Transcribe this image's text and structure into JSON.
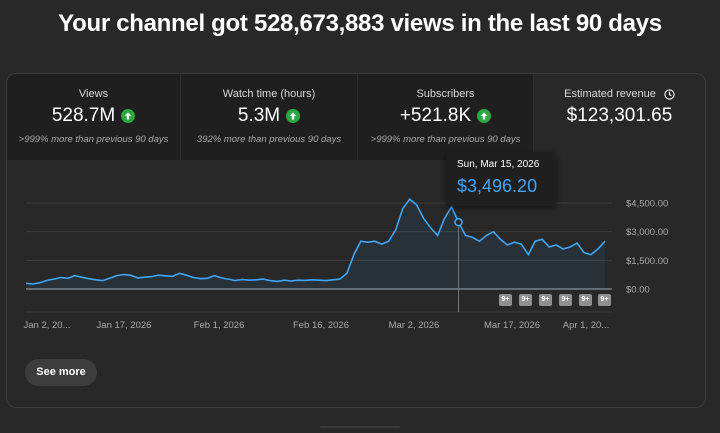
{
  "headline": "Your channel got 528,673,883 views in the last 90 days",
  "metrics": [
    {
      "label": "Views",
      "value": "528.7M",
      "sub": ">999% more than previous 90 days",
      "trend": "up"
    },
    {
      "label": "Watch time (hours)",
      "value": "5.3M",
      "sub": "392% more than previous 90 days",
      "trend": "up"
    },
    {
      "label": "Subscribers",
      "value": "+521.8K",
      "sub": ">999% more than previous 90 days",
      "trend": "up"
    },
    {
      "label": "Estimated revenue",
      "value": "$123,301.65",
      "icon": "clock-icon"
    }
  ],
  "tooltip": {
    "date": "Sun, Mar 15, 2026",
    "value": "$3,496.20"
  },
  "see_more": "See more",
  "badge_label": "9+",
  "colors": {
    "line": "#3ea6ff",
    "positive": "#2ba640",
    "background": "#282828"
  },
  "chart_data": {
    "type": "area",
    "x_tick_labels": [
      "Jan 2, 20...",
      "Jan 17, 2026",
      "Feb 1, 2026",
      "Feb 16, 2026",
      "Mar 2, 2026",
      "Mar 17, 2026",
      "Apr 1, 20..."
    ],
    "y_tick_labels": [
      "$4,500.00",
      "$3,000.00",
      "$1,500.00",
      "$0.00"
    ],
    "ylim": [
      0,
      4500
    ],
    "grid": true,
    "series": [
      {
        "values": [
          300,
          260,
          330,
          450,
          520,
          600,
          560,
          700,
          620,
          540,
          480,
          440,
          560,
          700,
          760,
          720,
          580,
          620,
          650,
          720,
          690,
          660,
          820,
          720,
          600,
          540,
          560,
          700,
          580,
          520,
          440,
          500,
          460,
          480,
          520,
          440,
          400,
          460,
          420,
          460,
          450,
          480,
          460,
          440,
          480,
          520,
          820,
          1800,
          2500,
          2450,
          2500,
          2350,
          2500,
          3100,
          4200,
          4700,
          4400,
          3700,
          3200,
          2800,
          3700,
          4300,
          3496,
          2800,
          2700,
          2500,
          2800,
          3000,
          2600,
          2300,
          2450,
          2350,
          1800,
          2500,
          2600,
          2200,
          2300,
          2100,
          2200,
          2400,
          1900,
          1800,
          2100,
          2500
        ]
      }
    ],
    "highlighted_point": {
      "date": "Sun, Mar 15, 2026",
      "value": 3496.2
    },
    "annotation_badges": [
      "9+",
      "9+",
      "9+",
      "9+",
      "9+",
      "9+"
    ]
  }
}
